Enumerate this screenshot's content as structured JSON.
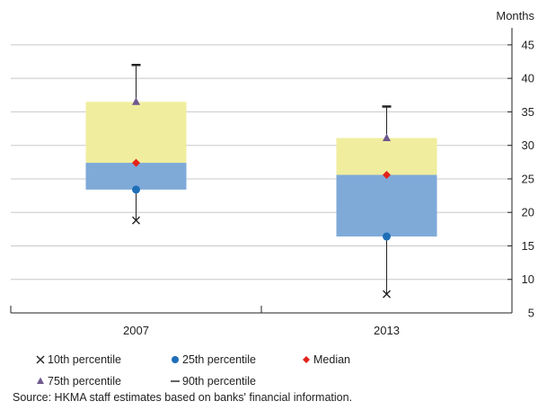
{
  "chart_data": {
    "type": "boxplot",
    "y_unit": "Months",
    "y_axis_side": "right",
    "ylim": [
      5,
      47
    ],
    "yticks": [
      5,
      10,
      15,
      20,
      25,
      30,
      35,
      40,
      45
    ],
    "grid": true,
    "categories": [
      "2007",
      "2013"
    ],
    "series": [
      {
        "name": "10th percentile",
        "values": [
          18.8,
          7.8
        ]
      },
      {
        "name": "25th percentile",
        "values": [
          23.4,
          16.4
        ]
      },
      {
        "name": "Median",
        "values": [
          27.4,
          25.6
        ]
      },
      {
        "name": "75th percentile",
        "values": [
          36.5,
          31.1
        ]
      },
      {
        "name": "90th percentile",
        "values": [
          42.0,
          35.8
        ]
      }
    ],
    "legend": [
      {
        "label": "10th percentile",
        "symbol": "x"
      },
      {
        "label": "25th percentile",
        "symbol": "circle"
      },
      {
        "label": "Median",
        "symbol": "diamond"
      },
      {
        "label": "75th percentile",
        "symbol": "triangle"
      },
      {
        "label": "90th percentile",
        "symbol": "dash"
      }
    ],
    "legend_position": "bottom",
    "colors": {
      "upper_box": "#f0ee9e",
      "lower_box": "#7faad8",
      "marker_p25": "#1f6fb8",
      "marker_median": "#e2231a",
      "marker_p75": "#6f5a8e",
      "line": "#222222",
      "grid": "#c8c8c8"
    }
  },
  "source": "Source: HKMA staff estimates based on banks' financial information."
}
